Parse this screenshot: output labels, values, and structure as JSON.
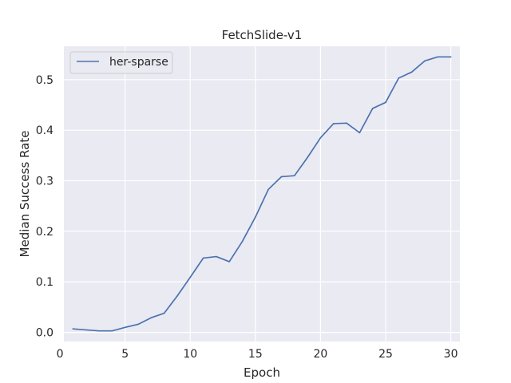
{
  "chart_data": {
    "type": "line",
    "title": "FetchSlide-v1",
    "xlabel": "Epoch",
    "ylabel": "Median Success Rate",
    "xlim": [
      0.3,
      30.7
    ],
    "ylim": [
      -0.018,
      0.566
    ],
    "xticks": [
      0,
      5,
      10,
      15,
      20,
      25,
      30
    ],
    "yticks": [
      0.0,
      0.1,
      0.2,
      0.3,
      0.4,
      0.5
    ],
    "xtick_labels": [
      "0",
      "5",
      "10",
      "15",
      "20",
      "25",
      "30"
    ],
    "ytick_labels": [
      "0.0",
      "0.1",
      "0.2",
      "0.3",
      "0.4",
      "0.5"
    ],
    "grid": true,
    "background": "#eaeaf2",
    "legend_position": "top-left",
    "series": [
      {
        "name": "her-sparse",
        "color": "#4c72b0",
        "x": [
          1,
          2,
          3,
          4,
          5,
          6,
          7,
          8,
          9,
          10,
          11,
          12,
          13,
          14,
          15,
          16,
          17,
          18,
          19,
          20,
          21,
          22,
          23,
          24,
          25,
          26,
          27,
          28,
          29,
          30
        ],
        "y": [
          0.007,
          0.005,
          0.003,
          0.003,
          0.01,
          0.016,
          0.029,
          0.038,
          0.072,
          0.109,
          0.147,
          0.15,
          0.14,
          0.18,
          0.228,
          0.283,
          0.308,
          0.31,
          0.346,
          0.385,
          0.413,
          0.414,
          0.395,
          0.443,
          0.455,
          0.503,
          0.515,
          0.537,
          0.545,
          0.545
        ]
      }
    ]
  }
}
